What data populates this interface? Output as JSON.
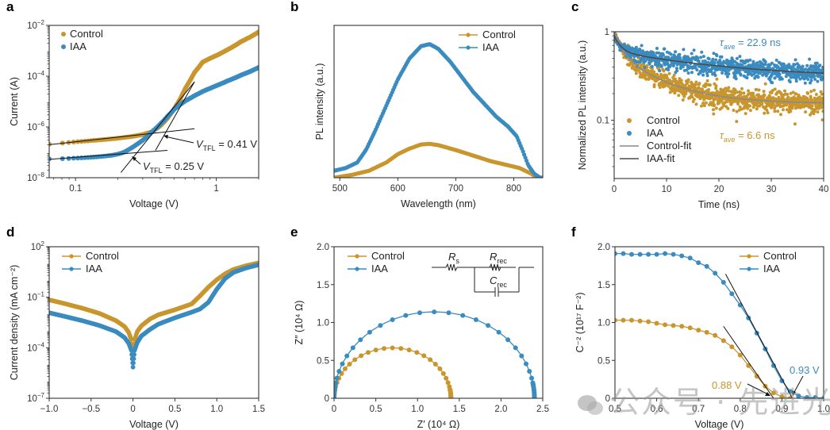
{
  "colors": {
    "control": "#c9962e",
    "iaa": "#3a8bbf",
    "control_fit": "#8a8a8a",
    "iaa_fit": "#4a4a4a",
    "frame": "#333333"
  },
  "watermark": {
    "text": "公众号 · 先进光伏",
    "icon": "wechat-icon"
  },
  "chart_data": [
    {
      "panel": "a",
      "type": "scatter",
      "xscale": "log",
      "yscale": "log",
      "xlabel": "Voltage (V)",
      "ylabel": "Current (A)",
      "xlim": [
        0.065,
        2.0
      ],
      "ylim": [
        1e-08,
        0.01
      ],
      "xticks": [
        {
          "v": 0.1,
          "label": "0.1"
        },
        {
          "v": 1,
          "label": "1"
        }
      ],
      "yticks": [
        {
          "v": 1e-08,
          "base": "10",
          "exp": "−8"
        },
        {
          "v": 1e-06,
          "base": "10",
          "exp": "−6"
        },
        {
          "v": 0.0001,
          "base": "10",
          "exp": "−4"
        },
        {
          "v": 0.01,
          "base": "10",
          "exp": "−2"
        }
      ],
      "legend": {
        "position": "top-left",
        "entries": [
          "Control",
          "IAA"
        ]
      },
      "series": [
        {
          "name": "Control",
          "color": "control",
          "x": [
            0.065,
            0.08,
            0.1,
            0.12,
            0.15,
            0.2,
            0.25,
            0.3,
            0.35,
            0.4,
            0.45,
            0.5,
            0.55,
            0.6,
            0.7,
            0.8,
            0.9,
            1.0,
            1.2,
            1.5,
            2.0
          ],
          "y": [
            2.1e-07,
            2.3e-07,
            2.6e-07,
            2.8e-07,
            3.1e-07,
            3.6e-07,
            4.2e-07,
            5e-07,
            6.5e-07,
            1.1e-06,
            2.2e-06,
            5e-06,
            1.2e-05,
            3.2e-05,
            0.00014,
            0.00036,
            0.0005,
            0.00065,
            0.0011,
            0.0023,
            0.0055
          ]
        },
        {
          "name": "IAA",
          "color": "iaa",
          "x": [
            0.065,
            0.08,
            0.1,
            0.12,
            0.15,
            0.18,
            0.2,
            0.22,
            0.25,
            0.3,
            0.35,
            0.4,
            0.45,
            0.5,
            0.55,
            0.6,
            0.7,
            0.8,
            0.9,
            1.0,
            1.2,
            1.5,
            2.0
          ],
          "y": [
            5.5e-08,
            5.6e-08,
            5.9e-08,
            6.2e-08,
            6.8e-08,
            7.6e-08,
            8.5e-08,
            1e-07,
            1.5e-07,
            3e-07,
            6.5e-07,
            1.3e-06,
            2.6e-06,
            4.8e-06,
            7.5e-06,
            1.05e-05,
            1.7e-05,
            2.5e-05,
            3.3e-05,
            4.2e-05,
            6.5e-05,
            0.00011,
            0.00022
          ]
        }
      ],
      "fit_lines": [
        {
          "x": [
            0.065,
            0.7
          ],
          "y": [
            2e-07,
            8.5e-07
          ]
        },
        {
          "x": [
            0.065,
            0.45
          ],
          "y": [
            5.3e-08,
            1.2e-07
          ]
        },
        {
          "x": [
            0.21,
            0.7
          ],
          "y": [
            1.6e-08,
            6e-05
          ]
        },
        {
          "x": [
            0.37,
            0.7
          ],
          "y": [
            1.2e-07,
            6e-05
          ]
        }
      ],
      "annotations": [
        {
          "text_v": "V",
          "text_sub": "TFL",
          "text_rest": " = 0.41 V",
          "x": 0.41
        },
        {
          "text_v": "V",
          "text_sub": "TFL",
          "text_rest": " = 0.25 V",
          "x": 0.25
        }
      ]
    },
    {
      "panel": "b",
      "type": "line",
      "xlabel": "Wavelength (nm)",
      "ylabel": "PL intensity (a.u.)",
      "xlim": [
        490,
        850
      ],
      "ylim": [
        0,
        1.1
      ],
      "xticks": [
        {
          "v": 500,
          "label": "500"
        },
        {
          "v": 600,
          "label": "600"
        },
        {
          "v": 700,
          "label": "700"
        },
        {
          "v": 800,
          "label": "800"
        }
      ],
      "yticks": [],
      "legend": {
        "position": "top-right",
        "entries": [
          "Control",
          "IAA"
        ]
      },
      "series": [
        {
          "name": "Control",
          "color": "control",
          "x": [
            490,
            520,
            550,
            580,
            600,
            620,
            640,
            655,
            670,
            700,
            730,
            760,
            790,
            810,
            830,
            840,
            850
          ],
          "y": [
            0.0,
            0.02,
            0.05,
            0.11,
            0.17,
            0.21,
            0.24,
            0.245,
            0.235,
            0.2,
            0.16,
            0.12,
            0.09,
            0.07,
            0.03,
            0.0,
            0.0
          ]
        },
        {
          "name": "IAA",
          "color": "iaa",
          "x": [
            490,
            510,
            530,
            545,
            560,
            580,
            600,
            620,
            640,
            655,
            670,
            690,
            710,
            730,
            750,
            770,
            790,
            805,
            815,
            825,
            835,
            845,
            850
          ],
          "y": [
            0.05,
            0.07,
            0.11,
            0.2,
            0.33,
            0.52,
            0.71,
            0.86,
            0.95,
            0.965,
            0.93,
            0.84,
            0.73,
            0.62,
            0.53,
            0.44,
            0.37,
            0.3,
            0.2,
            0.09,
            0.03,
            0.0,
            0.0
          ]
        }
      ]
    },
    {
      "panel": "c",
      "type": "scatter",
      "yscale": "log",
      "xlabel": "Time (ns)",
      "ylabel": "Normalized PL intensity (a.u.)",
      "xlim": [
        0,
        40
      ],
      "ylim": [
        0.022,
        1.0
      ],
      "xticks": [
        {
          "v": 0,
          "label": "0"
        },
        {
          "v": 10,
          "label": "10"
        },
        {
          "v": 20,
          "label": "20"
        },
        {
          "v": 30,
          "label": "30"
        },
        {
          "v": 40,
          "label": "40"
        }
      ],
      "yticks": [
        {
          "v": 0.1,
          "label": "0.1"
        },
        {
          "v": 1,
          "label": "1"
        }
      ],
      "legend": {
        "position": "bottom-left",
        "entries": [
          "Control",
          "IAA",
          "Control-fit",
          "IAA-fit"
        ]
      },
      "series": [
        {
          "name": "Control",
          "color": "control",
          "model": {
            "a1": 0.45,
            "t1": 1.5,
            "a2": 0.4,
            "t2": 8,
            "c": 0.155
          },
          "noise": 0.14
        },
        {
          "name": "IAA",
          "color": "iaa",
          "model": {
            "a1": 0.3,
            "t1": 1.2,
            "a2": 0.3,
            "t2": 20,
            "c": 0.3
          },
          "noise": 0.12
        },
        {
          "name": "Control-fit",
          "color": "control_fit",
          "model": {
            "a1": 0.45,
            "t1": 1.5,
            "a2": 0.4,
            "t2": 8,
            "c": 0.155
          }
        },
        {
          "name": "IAA-fit",
          "color": "iaa_fit",
          "model": {
            "a1": 0.3,
            "t1": 1.2,
            "a2": 0.3,
            "t2": 20,
            "c": 0.3
          }
        }
      ],
      "annotations": [
        {
          "tau": "τ",
          "sub": "ave",
          "rest": " = 22.9 ns",
          "color": "iaa"
        },
        {
          "tau": "τ",
          "sub": "ave",
          "rest": " = 6.6 ns",
          "color": "control"
        }
      ]
    },
    {
      "panel": "d",
      "type": "line",
      "yscale": "log",
      "xlabel": "Voltage (V)",
      "ylabel": "Current density (mA cm⁻²)",
      "xlim": [
        -1.0,
        1.5
      ],
      "ylim": [
        1e-07,
        100.0
      ],
      "xticks": [
        {
          "v": -1.0,
          "label": "−1.0"
        },
        {
          "v": -0.5,
          "label": "−0.5"
        },
        {
          "v": 0,
          "label": "0"
        },
        {
          "v": 0.5,
          "label": "0.5"
        },
        {
          "v": 1.0,
          "label": "1.0"
        },
        {
          "v": 1.5,
          "label": "1.5"
        }
      ],
      "yticks": [
        {
          "v": 1e-07,
          "base": "10",
          "exp": "−7"
        },
        {
          "v": 0.0001,
          "base": "10",
          "exp": "−4"
        },
        {
          "v": 0.1,
          "base": "10",
          "exp": "−1"
        },
        {
          "v": 100.0,
          "base": "10",
          "exp": "2"
        }
      ],
      "legend": {
        "position": "top-left",
        "entries": [
          "Control",
          "IAA"
        ]
      },
      "series": [
        {
          "name": "Control",
          "color": "control",
          "x": [
            -1.0,
            -0.8,
            -0.6,
            -0.4,
            -0.2,
            -0.1,
            -0.05,
            -0.02,
            0,
            0.02,
            0.05,
            0.1,
            0.2,
            0.3,
            0.5,
            0.7,
            0.8,
            0.9,
            1.0,
            1.1,
            1.2,
            1.35,
            1.5
          ],
          "y": [
            0.07,
            0.04,
            0.022,
            0.011,
            0.004,
            0.0018,
            0.0008,
            0.0003,
            3e-05,
            0.0003,
            0.0009,
            0.002,
            0.005,
            0.009,
            0.018,
            0.04,
            0.12,
            0.4,
            1.1,
            2.5,
            4.5,
            7.5,
            11
          ]
        },
        {
          "name": "IAA",
          "color": "iaa",
          "x": [
            -1.0,
            -0.8,
            -0.6,
            -0.4,
            -0.2,
            -0.1,
            -0.05,
            -0.02,
            0,
            0.02,
            0.05,
            0.1,
            0.2,
            0.3,
            0.5,
            0.7,
            0.8,
            0.9,
            1.0,
            1.1,
            1.2,
            1.35,
            1.5
          ],
          "y": [
            0.012,
            0.007,
            0.004,
            0.0021,
            0.0009,
            0.0004,
            0.00018,
            7e-05,
            7e-06,
            7e-05,
            0.0002,
            0.0005,
            0.0012,
            0.0025,
            0.006,
            0.013,
            0.02,
            0.05,
            0.3,
            1.3,
            3.0,
            5.5,
            8.5
          ]
        }
      ]
    },
    {
      "panel": "e",
      "type": "line",
      "xlabel": "Z′ (10⁴ Ω)",
      "ylabel": "Z″ (10⁴ Ω)",
      "xlim": [
        0,
        2.5
      ],
      "ylim": [
        0,
        2.0
      ],
      "xticks": [
        {
          "v": 0,
          "label": "0"
        },
        {
          "v": 0.5,
          "label": "0.5"
        },
        {
          "v": 1.0,
          "label": "1.0"
        },
        {
          "v": 1.5,
          "label": "1.5"
        },
        {
          "v": 2.0,
          "label": "2.0"
        },
        {
          "v": 2.5,
          "label": "2.5"
        }
      ],
      "yticks": [
        {
          "v": 0,
          "label": "0"
        },
        {
          "v": 0.5,
          "label": "0.5"
        },
        {
          "v": 1.0,
          "label": "1.0"
        },
        {
          "v": 1.5,
          "label": "1.5"
        },
        {
          "v": 2.0,
          "label": "2.0"
        }
      ],
      "legend": {
        "position": "top-left",
        "entries": [
          "Control",
          "IAA"
        ]
      },
      "series": [
        {
          "name": "Control",
          "color": "control",
          "semicircle": {
            "x0": 0.0,
            "x1": 1.4,
            "height": 0.665
          }
        },
        {
          "name": "IAA",
          "color": "iaa",
          "semicircle": {
            "x0": 0.0,
            "x1": 2.4,
            "height": 1.14
          }
        }
      ],
      "inset": {
        "rs": "R",
        "rs_sub": "s",
        "rrec": "R",
        "rrec_sub": "rec",
        "crec": "C",
        "crec_sub": "rec"
      }
    },
    {
      "panel": "f",
      "type": "line",
      "xlabel": "Voltage (V)",
      "ylabel": "C⁻² (10¹⁷ F⁻²)",
      "xlim": [
        0.5,
        1.0
      ],
      "ylim": [
        0,
        2.0
      ],
      "xticks": [
        {
          "v": 0.5,
          "label": "0.5"
        },
        {
          "v": 0.6,
          "label": "0.6"
        },
        {
          "v": 0.7,
          "label": "0.7"
        },
        {
          "v": 0.8,
          "label": "0.8"
        },
        {
          "v": 0.9,
          "label": "0.9"
        },
        {
          "v": 1.0,
          "label": "1.0"
        }
      ],
      "yticks": [
        {
          "v": 0,
          "label": "0"
        },
        {
          "v": 0.5,
          "label": "0.5"
        },
        {
          "v": 1.0,
          "label": "1.0"
        },
        {
          "v": 1.5,
          "label": "1.5"
        },
        {
          "v": 2.0,
          "label": "2.0"
        }
      ],
      "legend": {
        "position": "top-right",
        "entries": [
          "Control",
          "IAA"
        ]
      },
      "series": [
        {
          "name": "Control",
          "color": "control",
          "x": [
            0.5,
            0.52,
            0.54,
            0.56,
            0.58,
            0.6,
            0.62,
            0.64,
            0.66,
            0.68,
            0.7,
            0.72,
            0.74,
            0.76,
            0.78,
            0.8,
            0.82,
            0.84,
            0.86,
            0.88,
            0.9,
            0.92
          ],
          "y": [
            1.03,
            1.03,
            1.03,
            1.02,
            1.01,
            0.99,
            0.97,
            0.96,
            0.95,
            0.93,
            0.9,
            0.87,
            0.83,
            0.76,
            0.68,
            0.57,
            0.43,
            0.29,
            0.16,
            0.07,
            0.02,
            0.0
          ]
        },
        {
          "name": "IAA",
          "color": "iaa",
          "x": [
            0.5,
            0.52,
            0.54,
            0.56,
            0.58,
            0.6,
            0.62,
            0.64,
            0.66,
            0.68,
            0.7,
            0.72,
            0.74,
            0.76,
            0.78,
            0.8,
            0.82,
            0.84,
            0.86,
            0.88,
            0.9,
            0.92,
            0.94,
            0.96,
            0.98,
            1.0
          ],
          "y": [
            1.91,
            1.91,
            1.9,
            1.9,
            1.9,
            1.9,
            1.91,
            1.9,
            1.88,
            1.85,
            1.79,
            1.74,
            1.65,
            1.53,
            1.38,
            1.23,
            1.06,
            0.86,
            0.65,
            0.43,
            0.23,
            0.09,
            0.03,
            0.01,
            0.01,
            0.0
          ]
        }
      ],
      "fit_lines": [
        {
          "x": [
            0.76,
            0.88
          ],
          "y": [
            0.95,
            0.0
          ],
          "color": "control"
        },
        {
          "x": [
            0.765,
            0.925
          ],
          "y": [
            1.64,
            0.0
          ],
          "color": "iaa"
        }
      ],
      "annotations": [
        {
          "text": "0.88 V",
          "color": "control",
          "x": 0.88
        },
        {
          "text": "0.93 V",
          "color": "iaa",
          "x": 0.93
        }
      ]
    }
  ]
}
